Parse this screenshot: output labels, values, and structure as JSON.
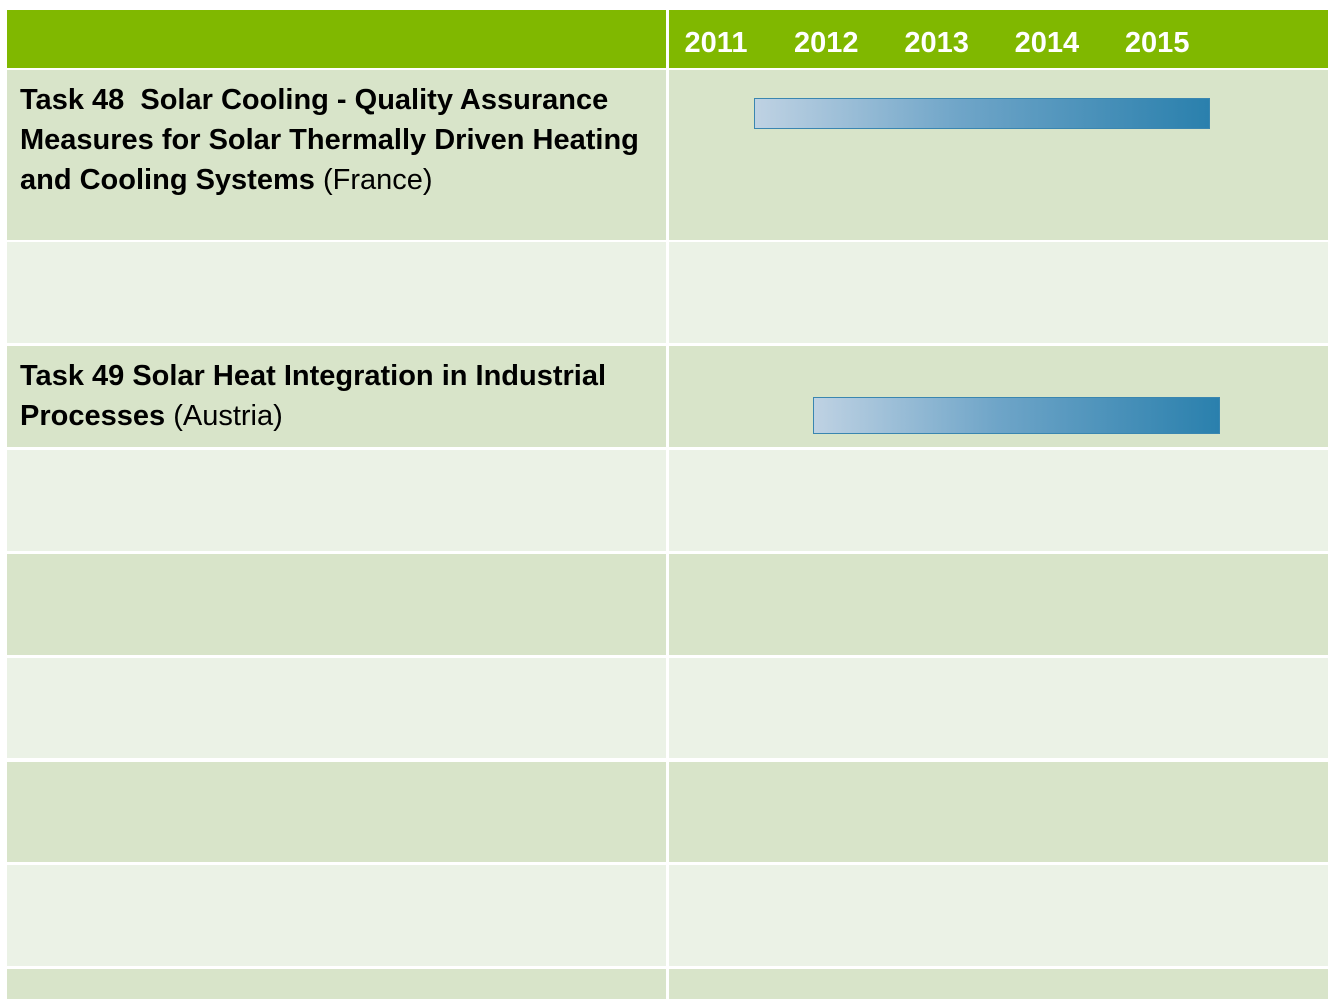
{
  "header": {
    "years": [
      "2011",
      "2012",
      "2013",
      "2014",
      "2015"
    ]
  },
  "tasks": [
    {
      "title": "Task 48  Solar Cooling - Quality Assurance Measures for Solar Thermally Driven Heating and Cooling Systems",
      "note": "(France)"
    },
    {
      "title": "Task 49 Solar Heat Integration in Industrial Processes",
      "note": "(Austria)"
    }
  ]
}
